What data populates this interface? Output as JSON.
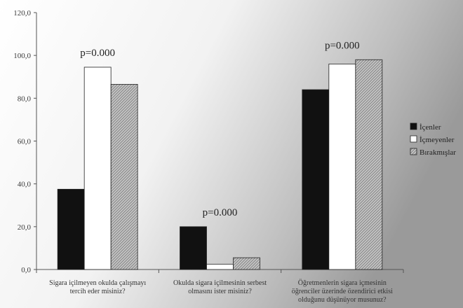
{
  "chart_data": {
    "type": "bar",
    "categories": [
      [
        "Sigara içilmeyen okulda çalışmayı",
        "tercih eder misiniz?"
      ],
      [
        "Okulda sigara içilmesinin serbest",
        "olmasını ister misiniz?"
      ],
      [
        "Öğretmenlerin sigara içmesinin",
        "öğrenciler üzerinde özendirici etkisi",
        "olduğunu düşünüyor musunuz?"
      ]
    ],
    "series": [
      {
        "name": "İçenler",
        "values": [
          37.5,
          20.0,
          84.0
        ],
        "color": "#111111",
        "pattern": "solid"
      },
      {
        "name": "İçmeyenler",
        "values": [
          94.5,
          2.5,
          96.0
        ],
        "color": "#ffffff",
        "pattern": "solid"
      },
      {
        "name": "Bırakmışlar",
        "values": [
          86.5,
          5.5,
          98.0
        ],
        "color": "#b8b8b8",
        "pattern": "hatch"
      }
    ],
    "annotations": [
      "p=0.000",
      "p=0.000",
      "p=0.000"
    ],
    "ylim": [
      0,
      120
    ],
    "yticks": [
      "0,0",
      "20,0",
      "40,0",
      "60,0",
      "80,0",
      "100,0",
      "120,0"
    ],
    "title": "",
    "xlabel": "",
    "ylabel": "",
    "legend_position": "right",
    "grid": false,
    "background": "gradient-white-to-gray"
  }
}
